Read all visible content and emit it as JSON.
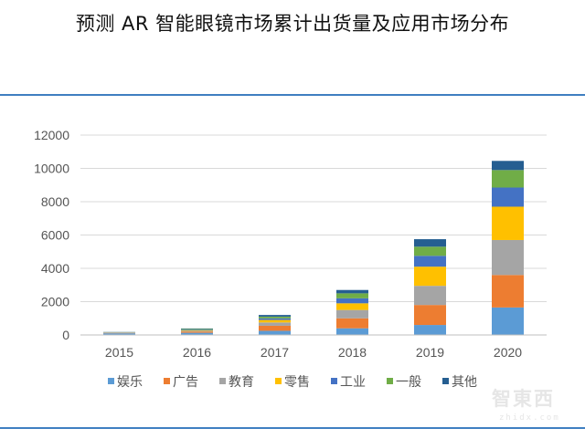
{
  "title": "预测 AR  智能眼镜市场累计出货量及应用市场分布",
  "watermark": {
    "logo_text": "智東西",
    "url_text": "zhidx.com"
  },
  "chart_data": {
    "type": "bar",
    "stacked": true,
    "title": "",
    "xlabel": "",
    "ylabel": "",
    "ylim": [
      0,
      12000
    ],
    "yticks": [
      0,
      2000,
      4000,
      6000,
      8000,
      10000,
      12000
    ],
    "grid": true,
    "legend_position": "bottom",
    "categories": [
      "2015",
      "2016",
      "2017",
      "2018",
      "2019",
      "2020"
    ],
    "series": [
      {
        "name": "娱乐",
        "color": "#5b9bd5",
        "values": [
          100,
          130,
          250,
          400,
          600,
          1650
        ]
      },
      {
        "name": "广告",
        "color": "#ed7d31",
        "values": [
          20,
          70,
          300,
          600,
          1200,
          1950
        ]
      },
      {
        "name": "教育",
        "color": "#a5a5a5",
        "values": [
          20,
          50,
          200,
          500,
          1150,
          2100
        ]
      },
      {
        "name": "零售",
        "color": "#ffc000",
        "values": [
          10,
          30,
          150,
          400,
          1150,
          2000
        ]
      },
      {
        "name": "工业",
        "color": "#4472c4",
        "values": [
          10,
          30,
          100,
          300,
          650,
          1150
        ]
      },
      {
        "name": "一般",
        "color": "#70ad47",
        "values": [
          10,
          50,
          100,
          300,
          550,
          1050
        ]
      },
      {
        "name": "其他",
        "color": "#255e91",
        "values": [
          10,
          30,
          100,
          200,
          450,
          550
        ]
      }
    ]
  }
}
